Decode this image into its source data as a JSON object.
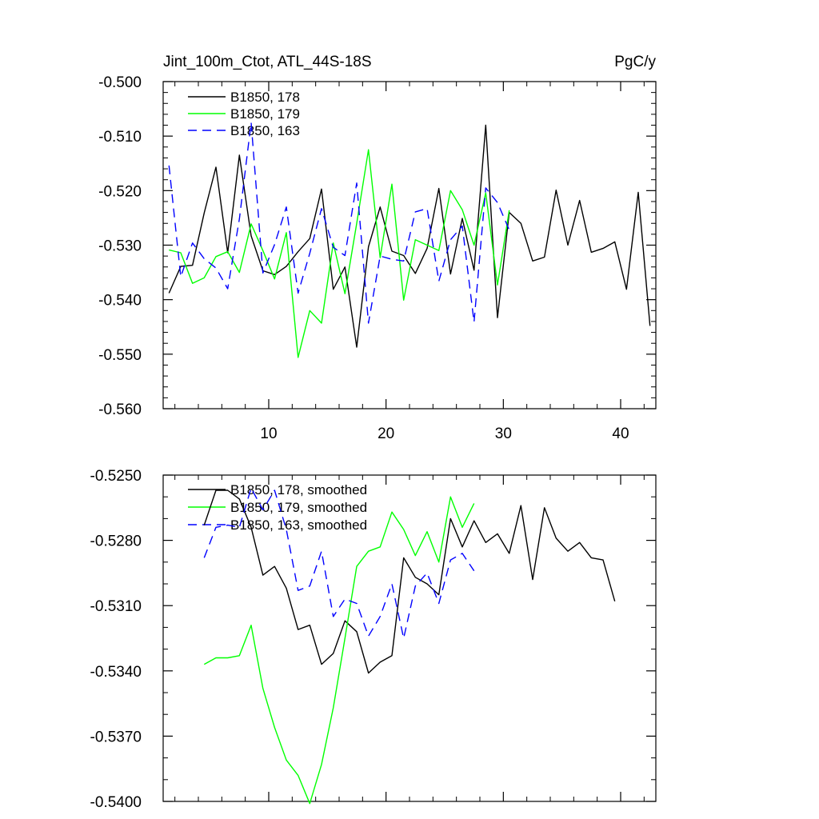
{
  "chart_data": [
    {
      "type": "line",
      "title": "Jint_100m_Ctot, ATL_44S-18S",
      "units": "PgC/y",
      "xlim": [
        1,
        43
      ],
      "ylim": [
        -0.56,
        -0.5
      ],
      "xticks": [
        10,
        20,
        30,
        40
      ],
      "xticklabels": [
        "10",
        "20",
        "30",
        "40"
      ],
      "yticks": [
        -0.5,
        -0.51,
        -0.52,
        -0.53,
        -0.54,
        -0.55,
        -0.56
      ],
      "yticklabels": [
        "-0.500",
        "-0.510",
        "-0.520",
        "-0.530",
        "-0.540",
        "-0.550",
        "-0.560"
      ],
      "series": [
        {
          "name": "B1850, 178",
          "color": "#000000",
          "dash": "solid",
          "x": [
            1.5,
            2.5,
            3.5,
            4.5,
            5.5,
            6.5,
            7.5,
            8.5,
            9.5,
            10.5,
            11.5,
            12.5,
            13.5,
            14.5,
            15.5,
            16.5,
            17.5,
            18.5,
            19.5,
            20.5,
            21.5,
            22.5,
            23.5,
            24.5,
            25.5,
            26.5,
            27.5,
            28.5,
            29.5,
            30.5,
            31.5,
            32.5,
            33.5,
            34.5,
            35.5,
            36.5,
            37.5,
            38.5,
            39.5,
            40.5,
            41.5,
            42.5
          ],
          "values": [
            -0.5388,
            -0.5339,
            -0.5337,
            -0.5241,
            -0.5157,
            -0.5314,
            -0.5135,
            -0.5283,
            -0.5347,
            -0.5354,
            -0.5339,
            -0.5312,
            -0.5288,
            -0.5197,
            -0.5381,
            -0.534,
            -0.5487,
            -0.5303,
            -0.523,
            -0.5311,
            -0.5319,
            -0.5352,
            -0.5306,
            -0.5196,
            -0.5353,
            -0.5251,
            -0.5346,
            -0.508,
            -0.5433,
            -0.524,
            -0.526,
            -0.5329,
            -0.5322,
            -0.5199,
            -0.53,
            -0.5218,
            -0.5313,
            -0.5306,
            -0.5294,
            -0.5381,
            -0.5203,
            -0.5448
          ]
        },
        {
          "name": "B1850, 179",
          "color": "#00ff00",
          "dash": "solid",
          "x": [
            1.5,
            2.5,
            3.5,
            4.5,
            5.5,
            6.5,
            7.5,
            8.5,
            9.5,
            10.5,
            11.5,
            12.5,
            13.5,
            14.5,
            15.5,
            16.5,
            17.5,
            18.5,
            19.5,
            20.5,
            21.5,
            22.5,
            23.5,
            24.5,
            25.5,
            26.5,
            27.5,
            28.5,
            29.5,
            30.5
          ],
          "values": [
            -0.5309,
            -0.5314,
            -0.537,
            -0.536,
            -0.5321,
            -0.5312,
            -0.535,
            -0.5261,
            -0.531,
            -0.5362,
            -0.5277,
            -0.5506,
            -0.542,
            -0.5443,
            -0.5296,
            -0.5389,
            -0.526,
            -0.5125,
            -0.5323,
            -0.5188,
            -0.5401,
            -0.529,
            -0.53,
            -0.531,
            -0.52,
            -0.5235,
            -0.53,
            -0.5204,
            -0.5373,
            -0.5236
          ]
        },
        {
          "name": "B1850, 163",
          "color": "#0000ff",
          "dash": "dashed",
          "x": [
            1.5,
            2.5,
            3.5,
            4.5,
            5.5,
            6.5,
            7.5,
            8.5,
            9.5,
            10.5,
            11.5,
            12.5,
            13.5,
            14.5,
            15.5,
            16.5,
            17.5,
            18.5,
            19.5,
            20.5,
            21.5,
            22.5,
            23.5,
            24.5,
            25.5,
            26.5,
            27.5,
            28.5,
            29.5,
            30.5
          ],
          "values": [
            -0.5154,
            -0.5358,
            -0.5296,
            -0.5325,
            -0.5342,
            -0.538,
            -0.5252,
            -0.5075,
            -0.5351,
            -0.5299,
            -0.523,
            -0.5388,
            -0.5315,
            -0.5233,
            -0.5304,
            -0.5319,
            -0.5186,
            -0.5443,
            -0.532,
            -0.5326,
            -0.5329,
            -0.5239,
            -0.5233,
            -0.5366,
            -0.529,
            -0.5265,
            -0.5441,
            -0.5195,
            -0.5222,
            -0.5272
          ]
        }
      ]
    },
    {
      "type": "line",
      "title": "",
      "xlim": [
        1,
        43
      ],
      "ylim": [
        -0.54,
        -0.525
      ],
      "xticks": [
        10,
        20,
        30,
        40
      ],
      "xticklabels": [],
      "yticks": [
        -0.525,
        -0.528,
        -0.531,
        -0.534,
        -0.537,
        -0.54
      ],
      "yticklabels": [
        "-0.5250",
        "-0.5280",
        "-0.5310",
        "-0.5340",
        "-0.5370",
        "-0.5400"
      ],
      "series": [
        {
          "name": "B1850, 178, smoothed",
          "color": "#000000",
          "dash": "solid",
          "x": [
            4.5,
            5.5,
            6.5,
            7.5,
            8.5,
            9.5,
            10.5,
            11.5,
            12.5,
            13.5,
            14.5,
            15.5,
            16.5,
            17.5,
            18.5,
            19.5,
            20.5,
            21.5,
            22.5,
            23.5,
            24.5,
            25.5,
            26.5,
            27.5,
            28.5,
            29.5,
            30.5,
            31.5,
            32.5,
            33.5,
            34.5,
            35.5,
            36.5,
            37.5,
            38.5,
            39.5
          ],
          "values": [
            -0.5273,
            -0.5257,
            -0.5257,
            -0.5261,
            -0.5274,
            -0.5296,
            -0.5292,
            -0.5302,
            -0.5321,
            -0.5319,
            -0.5337,
            -0.5332,
            -0.5317,
            -0.5322,
            -0.5341,
            -0.5336,
            -0.5333,
            -0.5288,
            -0.5297,
            -0.53,
            -0.5305,
            -0.527,
            -0.5283,
            -0.5271,
            -0.5281,
            -0.5277,
            -0.5286,
            -0.5264,
            -0.5298,
            -0.5265,
            -0.5279,
            -0.5285,
            -0.5281,
            -0.5288,
            -0.5289,
            -0.5308
          ]
        },
        {
          "name": "B1850, 179, smoothed",
          "color": "#00ff00",
          "dash": "solid",
          "x": [
            4.5,
            5.5,
            6.5,
            7.5,
            8.5,
            9.5,
            10.5,
            11.5,
            12.5,
            13.5,
            14.5,
            15.5,
            16.5,
            17.5,
            18.5,
            19.5,
            20.5,
            21.5,
            22.5,
            23.5,
            24.5,
            25.5,
            26.5,
            27.5
          ],
          "values": [
            -0.5337,
            -0.5334,
            -0.5334,
            -0.5333,
            -0.5319,
            -0.5348,
            -0.5366,
            -0.5381,
            -0.5388,
            -0.5401,
            -0.5383,
            -0.5357,
            -0.5325,
            -0.5292,
            -0.5285,
            -0.5283,
            -0.5267,
            -0.5275,
            -0.5287,
            -0.5276,
            -0.529,
            -0.526,
            -0.5274,
            -0.5263
          ]
        },
        {
          "name": "B1850, 163, smoothed",
          "color": "#0000ff",
          "dash": "dashed",
          "x": [
            4.5,
            5.5,
            6.5,
            7.5,
            8.5,
            9.5,
            10.5,
            11.5,
            12.5,
            13.5,
            14.5,
            15.5,
            16.5,
            17.5,
            18.5,
            19.5,
            20.5,
            21.5,
            22.5,
            23.5,
            24.5,
            25.5,
            26.5,
            27.5
          ],
          "values": [
            -0.5288,
            -0.5274,
            -0.5273,
            -0.5274,
            -0.5256,
            -0.5266,
            -0.5257,
            -0.5275,
            -0.5303,
            -0.5301,
            -0.5285,
            -0.5315,
            -0.5307,
            -0.5309,
            -0.5324,
            -0.5315,
            -0.53,
            -0.5325,
            -0.5301,
            -0.5295,
            -0.5309,
            -0.5289,
            -0.5286,
            -0.5294
          ]
        }
      ]
    }
  ]
}
